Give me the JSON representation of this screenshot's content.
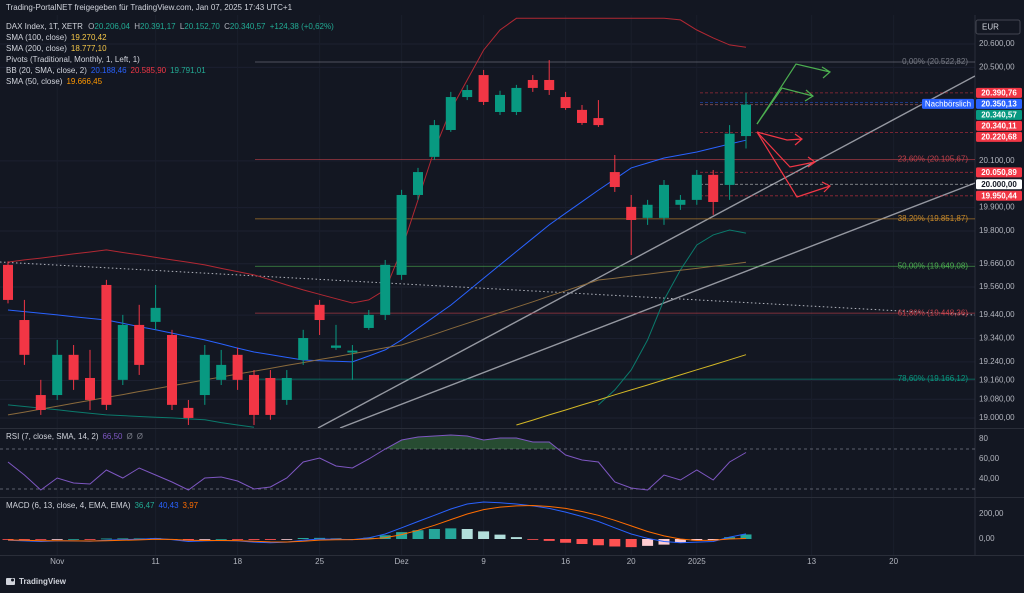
{
  "chart_data": {
    "type": "candlestick",
    "title": "Trading-PortalNET freigegeben für TradingView.com, Jan 07, 2025 17:43 UTC+1",
    "symbol": "DAX Index, 1T, XETR",
    "ohlc": [
      "O",
      "20.206,04",
      "H",
      "20.391,17",
      "L",
      "20.152,70",
      "C",
      "20.340,57",
      "+124,38 (+0,62%)"
    ],
    "indicators": [
      {
        "name": "SMA (100, close)",
        "values": [
          "19.270,42"
        ],
        "colors": [
          "#f7c948"
        ]
      },
      {
        "name": "SMA (200, close)",
        "values": [
          "18.777,10"
        ],
        "colors": [
          "#f7c948"
        ]
      },
      {
        "name": "Pivots (Traditional, Monthly, 1, Left, 1)",
        "values": [],
        "colors": []
      },
      {
        "name": "BB (20, SMA, close, 2)",
        "values": [
          "20.188,46",
          "20.585,90",
          "19.791,01"
        ],
        "colors": [
          "#2962ff",
          "#f23645",
          "#22ab94"
        ]
      },
      {
        "name": "SMA (50, close)",
        "values": [
          "19.666,45"
        ],
        "colors": [
          "#ff9800"
        ]
      }
    ],
    "currency": "EUR",
    "logo": "TradingView",
    "up_color": "#089981",
    "down_color": "#f23645",
    "categories": [
      null,
      null,
      null,
      "Nov",
      null,
      null,
      null,
      null,
      null,
      "11",
      null,
      null,
      null,
      null,
      "18",
      null,
      null,
      null,
      null,
      "25",
      null,
      null,
      null,
      null,
      "Dez",
      null,
      null,
      null,
      null,
      "9",
      null,
      null,
      null,
      null,
      "16",
      null,
      null,
      null,
      "20",
      null,
      null,
      null,
      "2025",
      null,
      null,
      null,
      null,
      null,
      null,
      "13",
      null,
      null,
      null,
      null,
      "20",
      null,
      null,
      null,
      null
    ],
    "open": [
      19655,
      19419,
      19098,
      19098,
      19270,
      19171,
      19569,
      19163,
      19398,
      19411,
      19355,
      19043,
      19098,
      19163,
      19270,
      19184,
      19171,
      19077,
      19248,
      19484,
      19300,
      19280,
      19385,
      19441,
      19612,
      19954,
      20117,
      20232,
      20373,
      20467,
      20309,
      20309,
      20446,
      20446,
      20373,
      20318,
      20283,
      20052,
      19903,
      19856,
      19856,
      19912,
      19933,
      20040,
      19997,
      20206.04,
      null,
      null,
      null,
      null,
      null,
      null,
      null,
      null,
      null,
      null,
      null,
      null,
      null
    ],
    "high": [
      19670,
      19505,
      19163,
      19334,
      19312,
      19291,
      19591,
      19441,
      19484,
      19569,
      19377,
      19077,
      19312,
      19291,
      19300,
      19205,
      19205,
      19205,
      19377,
      19505,
      19398,
      19312,
      19462,
      19676,
      19976,
      20070,
      20275,
      20395,
      20425,
      20489,
      20400,
      20425,
      20467,
      20531,
      20395,
      20339,
      20360,
      20125,
      19954,
      19933,
      20018,
      19954,
      20061,
      20061,
      20253,
      20391.17,
      null,
      null,
      null,
      null,
      null,
      null,
      null,
      null,
      null,
      null,
      null,
      null,
      null
    ],
    "low": [
      19490,
      19227,
      19013,
      19077,
      19120,
      19034,
      19034,
      19141,
      19184,
      19377,
      19034,
      18970,
      19056,
      19141,
      19120,
      18970,
      18992,
      19056,
      19227,
      19355,
      19291,
      19163,
      19377,
      19419,
      19591,
      19933,
      20104,
      20224,
      20360,
      20339,
      20296,
      20296,
      20395,
      20382,
      20318,
      20254,
      20245,
      19967,
      19697,
      19826,
      19826,
      19890,
      19912,
      19869,
      19933,
      20152.7,
      null,
      null,
      null,
      null,
      null,
      null,
      null,
      null,
      null,
      null,
      null,
      null,
      null
    ],
    "close": [
      19505,
      19270,
      19034,
      19270,
      19163,
      19077,
      19056,
      19398,
      19227,
      19471,
      19056,
      19000,
      19270,
      19227,
      19163,
      19013,
      19013,
      19171,
      19342,
      19419,
      19310,
      19288,
      19441,
      19655,
      19954,
      20052,
      20253,
      20373,
      20403,
      20352,
      20382,
      20412,
      20412,
      20403,
      20326,
      20262,
      20253,
      19988,
      19847,
      19912,
      19997,
      19933,
      20040,
      19924,
      20216.19,
      20340.57,
      null,
      null,
      null,
      null,
      null,
      null,
      null,
      null,
      null,
      null,
      null,
      null,
      null
    ],
    "series": [
      {
        "color": "#b22833",
        "values": [
          19667,
          19676,
          19684,
          19693,
          19702,
          19710,
          19719,
          19708,
          19698,
          19687,
          19676,
          19666,
          19655,
          19640,
          19626,
          19612,
          19591,
          19569,
          19548,
          19529,
          19510,
          19492,
          19505,
          19548,
          19719,
          19933,
          20147,
          20318,
          20446,
          20574,
          20660,
          20710,
          20710,
          20710,
          20710,
          20710,
          20710,
          20710,
          20710,
          20710,
          20710,
          20703,
          20660,
          20626,
          20596,
          20585.9,
          null,
          null,
          null,
          null,
          null,
          null,
          null,
          null,
          null,
          null,
          null,
          null,
          null
        ]
      },
      {
        "color": "#2962ff",
        "values": [
          19462,
          19455,
          19448,
          19441,
          19433,
          19426,
          19419,
          19405,
          19391,
          19377,
          19363,
          19348,
          19334,
          19317,
          19299,
          19282,
          19271,
          19259,
          19248,
          19245,
          19243,
          19240,
          19265,
          19291,
          19334,
          19384,
          19433,
          19483,
          19540,
          19598,
          19655,
          19712,
          19769,
          19826,
          19876,
          19925,
          19975,
          20022,
          20070,
          20091,
          20112,
          20125,
          20138,
          20155,
          20172,
          20188.46,
          null,
          null,
          null,
          null,
          null,
          null,
          null,
          null,
          null,
          null,
          null,
          null,
          null
        ]
      },
      {
        "color": "#0b7a6c",
        "values": [
          19056,
          19049,
          19042,
          19035,
          19027,
          19020,
          19013,
          19010,
          19006,
          19003,
          19000,
          18996,
          18992,
          18980,
          18970,
          18960,
          null,
          null,
          null,
          null,
          null,
          null,
          null,
          null,
          null,
          null,
          null,
          null,
          null,
          null,
          null,
          null,
          null,
          null,
          null,
          null,
          19056,
          19120,
          19205,
          19334,
          19505,
          19633,
          19740,
          19783,
          19804,
          19791.01,
          null,
          null,
          null,
          null,
          null,
          null,
          null,
          null,
          null,
          null,
          null,
          null,
          null
        ]
      },
      {
        "color": "#8a6a3c",
        "values": [
          19013,
          19025,
          19038,
          19050,
          19063,
          19075,
          19088,
          19100,
          19113,
          19125,
          19138,
          19150,
          19163,
          19175,
          19188,
          19200,
          19212,
          19225,
          19237,
          19250,
          19262,
          19275,
          19287,
          19300,
          19312,
          19335,
          19358,
          19382,
          19405,
          19428,
          19451,
          19474,
          19497,
          19521,
          19544,
          19567,
          19590,
          19598,
          19607,
          19615,
          19624,
          19632,
          19640,
          19649,
          19657,
          19666.45,
          null,
          null,
          null,
          null,
          null,
          null,
          null,
          null,
          null,
          null,
          null,
          null,
          null
        ]
      },
      {
        "color": "#d4b826",
        "values": [
          null,
          null,
          null,
          null,
          null,
          null,
          null,
          null,
          null,
          null,
          null,
          null,
          null,
          null,
          null,
          null,
          null,
          null,
          null,
          null,
          null,
          null,
          null,
          null,
          null,
          null,
          null,
          null,
          null,
          null,
          null,
          18970,
          18991,
          19013,
          19034,
          19056,
          19077,
          19099,
          19120,
          19141,
          19163,
          19184,
          19206,
          19227,
          19249,
          19270.42,
          null,
          null,
          null,
          null,
          null,
          null,
          null,
          null,
          null,
          null,
          null,
          null,
          null
        ]
      }
    ],
    "ylim": [
      18957,
      20724
    ],
    "yticks": [
      {
        "value": 20600,
        "label": "20.600,00"
      },
      {
        "value": 20500,
        "label": "20.500,00"
      },
      {
        "value": 20100,
        "label": "20.100,00"
      },
      {
        "value": 19900,
        "label": "19.900,00"
      },
      {
        "value": 19800,
        "label": "19.800,00"
      },
      {
        "value": 19660,
        "label": "19.660,00"
      },
      {
        "value": 19560,
        "label": "19.560,00"
      },
      {
        "value": 19440,
        "label": "19.440,00"
      },
      {
        "value": 19340,
        "label": "19.340,00"
      },
      {
        "value": 19240,
        "label": "19.240,00"
      },
      {
        "value": 19160,
        "label": "19.160,00"
      },
      {
        "value": 19080,
        "label": "19.080,00"
      },
      {
        "value": 19000,
        "label": "19.000,00"
      }
    ],
    "grid": true,
    "fib_levels": [
      {
        "value": 20522.82,
        "label": "0,00% (20.522,82)",
        "color": "#787b86"
      },
      {
        "value": 20105.67,
        "label": "23,60% (20.105,67)",
        "color": "#c2404a"
      },
      {
        "value": 19851.87,
        "label": "38,20% (19.851,87)",
        "color": "#c98a2a"
      },
      {
        "value": 19649.08,
        "label": "50,00% (19.649,08)",
        "color": "#4caf50"
      },
      {
        "value": 19448.36,
        "label": "61,80% (19.448,36)",
        "color": "#c2404a"
      },
      {
        "value": 19166.12,
        "label": "78,60% (19.166,12)",
        "color": "#089981"
      }
    ],
    "price_labels": [
      {
        "value": 20390.76,
        "label": "20.390,76",
        "color": "#f23645"
      },
      {
        "value": 20350.13,
        "label": "20.350,13",
        "color": "#2962ff",
        "tag": "Nachbörslich"
      },
      {
        "value": 20340.57,
        "label": "20.340,57",
        "color": "#089981"
      },
      {
        "value": 20340.11,
        "label": "20.340,11",
        "color": "#f23645"
      },
      {
        "value": 20220.68,
        "label": "20.220,68",
        "color": "#f23645"
      },
      {
        "value": 20050.89,
        "label": "20.050,89",
        "color": "#f23645"
      },
      {
        "value": 20000,
        "label": "20.000,00",
        "color": "#ffffff"
      },
      {
        "value": 19950.44,
        "label": "19.950,44",
        "color": "#f23645"
      }
    ],
    "rsi": {
      "title": "RSI (7, close, SMA, 14, 2)",
      "legend_values": [
        "66,50",
        "Ø",
        "Ø"
      ],
      "legend_colors": [
        "#7e57c2",
        "#787b86",
        "#787b86"
      ],
      "color": "#7e57c2",
      "values": [
        57,
        44,
        29,
        41,
        36,
        35,
        49,
        41,
        51,
        44,
        37,
        29,
        41,
        42,
        38,
        30,
        32,
        41,
        57,
        61,
        53,
        51,
        60,
        70,
        79,
        82,
        83,
        84,
        83,
        79,
        81,
        81,
        77,
        77,
        64,
        59,
        57,
        37,
        31,
        29,
        44,
        39,
        49,
        39,
        57,
        66.5,
        null,
        null,
        null,
        null,
        null,
        null,
        null,
        null,
        null,
        null,
        null,
        null,
        null
      ],
      "ylim": [
        23,
        89
      ],
      "yticks": [
        80,
        {
          "value": 60,
          "label": "60,00"
        },
        {
          "value": 40,
          "label": "40,00"
        }
      ],
      "bands": [
        70,
        30
      ]
    },
    "macd": {
      "title": "MACD (6, 13, close, 4, EMA, EMA)",
      "legend_values": [
        "36,47",
        "40,43",
        "3,97"
      ],
      "legend_colors": [
        "#22ab94",
        "#2962ff",
        "#ff6d00"
      ],
      "histogram": [
        -2,
        -5,
        -6,
        -1,
        0,
        -2,
        4,
        5,
        5,
        7,
        -2,
        -10,
        -3,
        0,
        -2,
        -7,
        -7,
        -1,
        8,
        9,
        4,
        0,
        10,
        30,
        55,
        70,
        80,
        85,
        80,
        61,
        35,
        15,
        -3,
        -15,
        -30,
        -40,
        -50,
        -60,
        -65,
        -55,
        -45,
        -30,
        -13,
        -10,
        15,
        36.47,
        null,
        null,
        null,
        null,
        null,
        null,
        null,
        null,
        null,
        null,
        null,
        null,
        null
      ],
      "hist_colors": [
        "#26a69a",
        "#b2dfdb",
        "#ffcdd2",
        "#ff5252"
      ],
      "series": [
        {
          "color": "#2962ff",
          "values": [
            -10,
            -15,
            -20,
            -15,
            -15,
            -18,
            -10,
            -5,
            -2,
            5,
            -5,
            -20,
            -15,
            -12,
            -15,
            -25,
            -30,
            -25,
            -10,
            0,
            -2,
            -5,
            10,
            40,
            90,
            140,
            190,
            240,
            280,
            296,
            290,
            280,
            265,
            245,
            215,
            180,
            140,
            90,
            40,
            5,
            -20,
            -30,
            -25,
            -20,
            15,
            40.43,
            null,
            null,
            null,
            null,
            null,
            null,
            null,
            null,
            null,
            null,
            null,
            null,
            null
          ]
        },
        {
          "color": "#ff6d00",
          "values": [
            -8,
            -10,
            -14,
            -14,
            -15,
            -16,
            -14,
            -10,
            -7,
            -2,
            -3,
            -10,
            -12,
            -12,
            -13,
            -18,
            -23,
            -24,
            -18,
            -9,
            -6,
            -5,
            0,
            10,
            35,
            70,
            110,
            155,
            200,
            235,
            255,
            265,
            268,
            260,
            245,
            220,
            190,
            150,
            105,
            60,
            25,
            0,
            -12,
            -10,
            0,
            3.97,
            null,
            null,
            null,
            null,
            null,
            null,
            null,
            null,
            null,
            null,
            null,
            null,
            null
          ]
        }
      ],
      "ylim": [
        -112,
        320
      ],
      "yticks": [
        {
          "value": 200,
          "label": "200,00"
        },
        {
          "value": 0,
          "label": "0,00"
        }
      ]
    }
  }
}
